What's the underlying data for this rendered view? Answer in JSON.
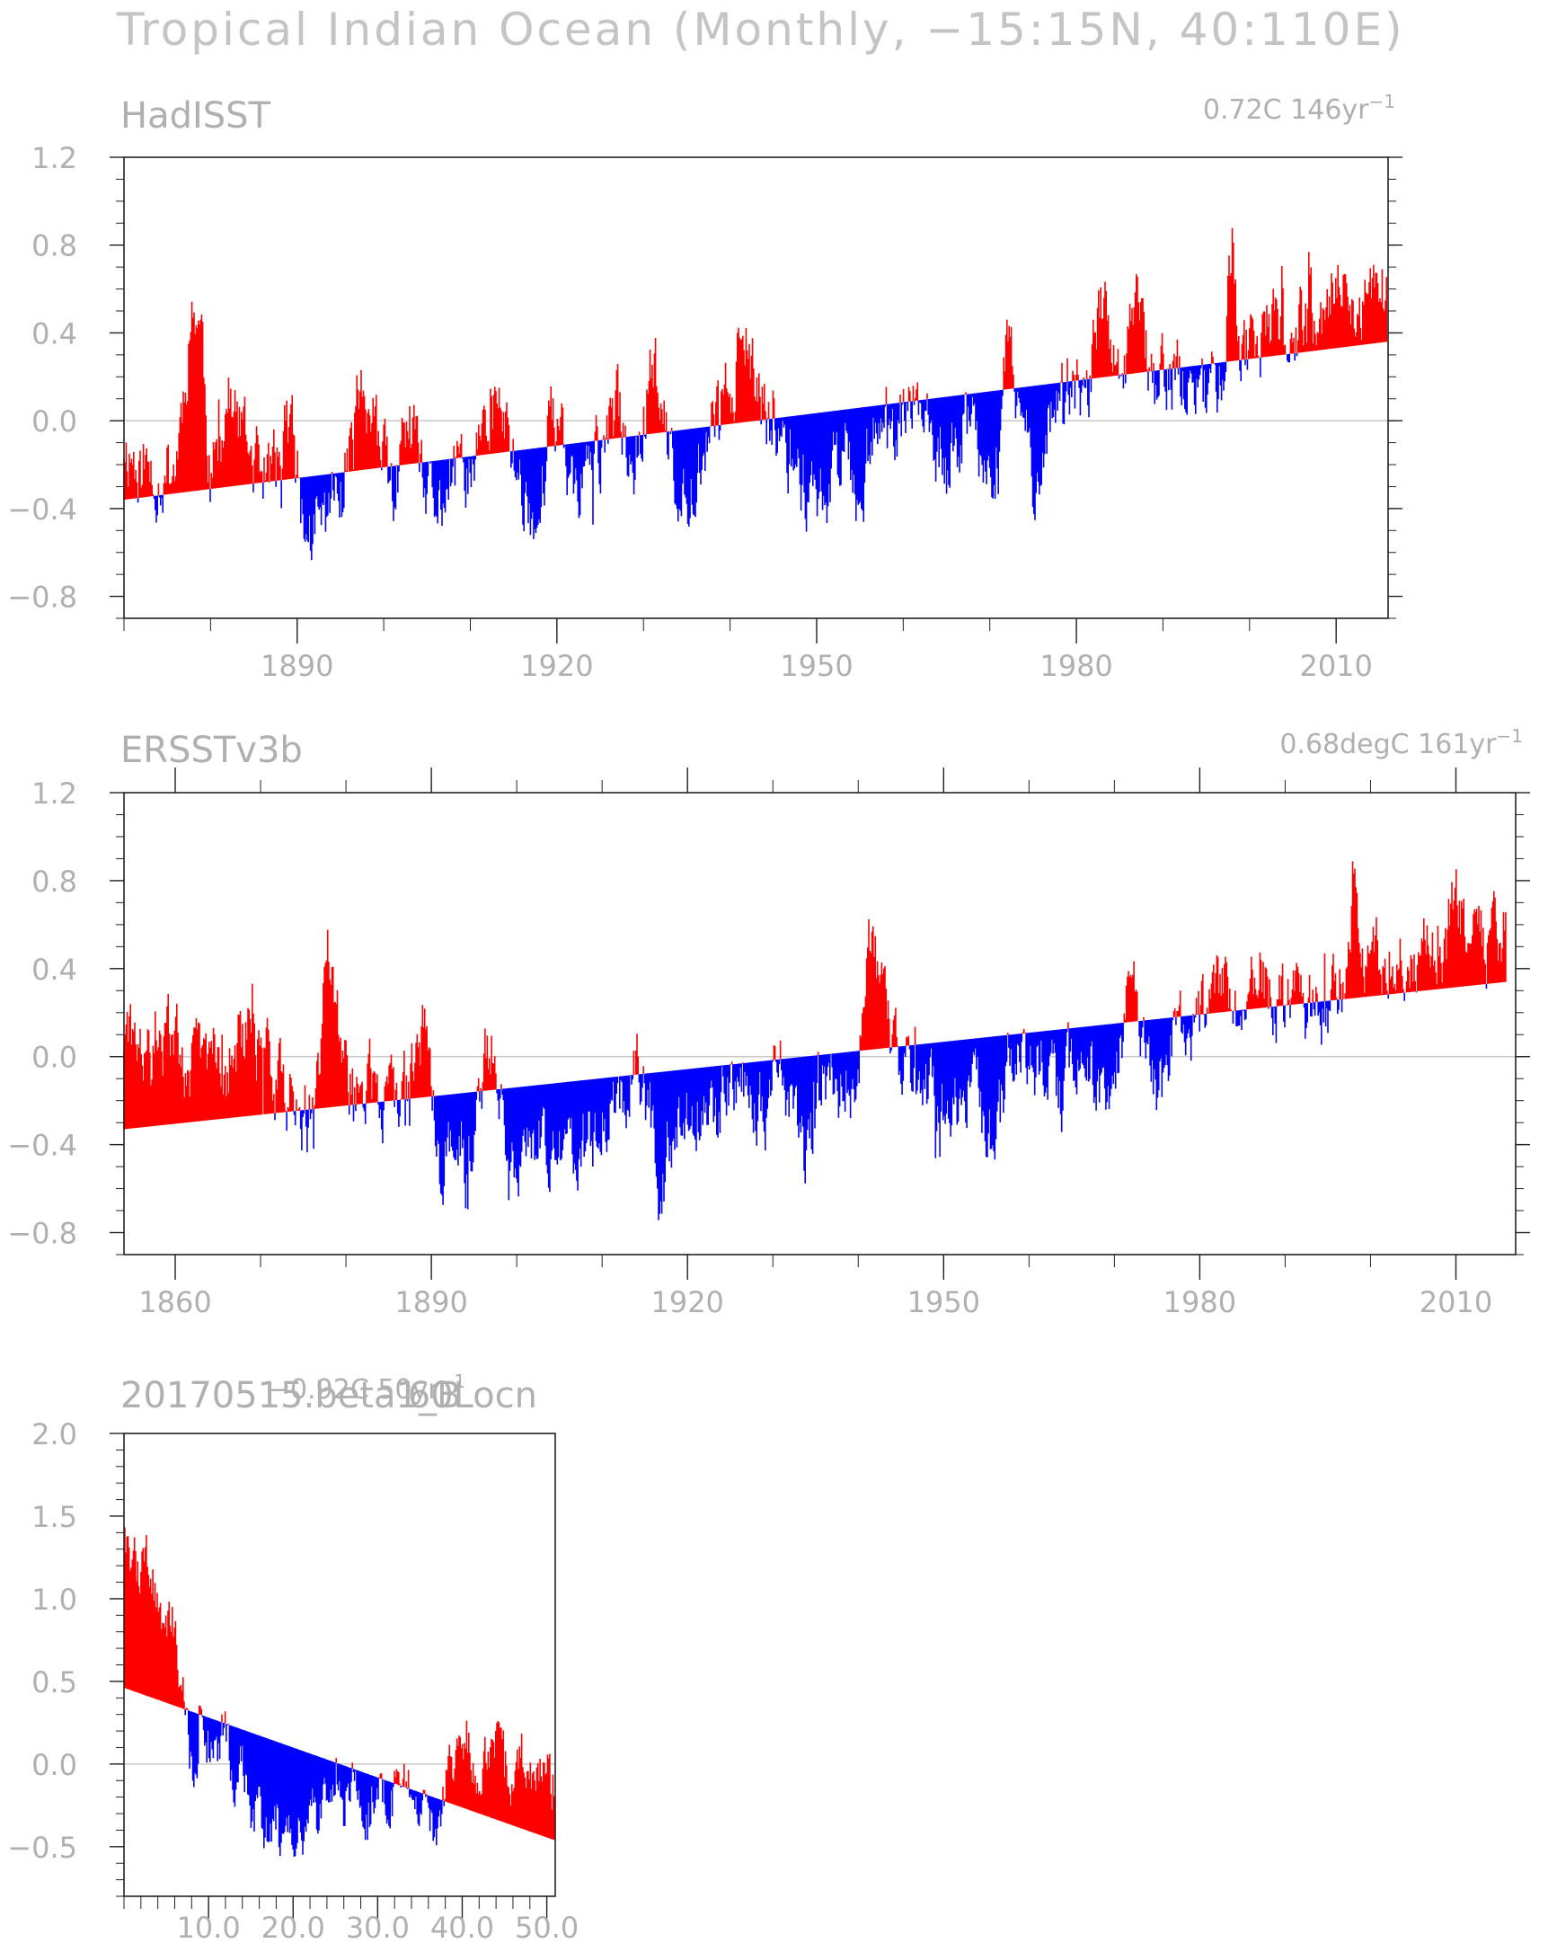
{
  "title": "Tropical Indian Ocean (Monthly, −15:15N, 40:110E)",
  "colors": {
    "positive": "#ff0000",
    "negative": "#0000ff",
    "axis": "#222222",
    "text": "#b0b0b0",
    "zero_line": "#c8c8c8"
  },
  "chart_data": [
    {
      "type": "area",
      "title": "HadISST",
      "trend_label": "0.72C 146yr",
      "trend_label_sup": "−1",
      "x_start": 1870,
      "x_end": 2015.9,
      "xlim": [
        1870,
        2016
      ],
      "ylim": [
        -0.9,
        1.2
      ],
      "xticks": [
        1890,
        1920,
        1950,
        1980,
        2010
      ],
      "yticks": [
        -0.8,
        -0.4,
        0.0,
        0.4,
        0.8,
        1.2
      ],
      "ytick_labels": [
        "−0.8",
        "−0.4",
        "0.0",
        "0.4",
        "0.8",
        "1.2"
      ],
      "xminor_step": 10,
      "yminor_step": 0.1,
      "trend_line": [
        [
          1870,
          -0.36
        ],
        [
          2015.9,
          0.36
        ]
      ],
      "anomaly_profile": [
        [
          1870,
          -0.1
        ],
        [
          1872,
          -0.22
        ],
        [
          1874,
          -0.25
        ],
        [
          1876,
          -0.2
        ],
        [
          1878,
          0.55
        ],
        [
          1879,
          0.4
        ],
        [
          1880,
          -0.3
        ],
        [
          1882,
          0.1
        ],
        [
          1884,
          -0.1
        ],
        [
          1886,
          -0.25
        ],
        [
          1888,
          -0.2
        ],
        [
          1889,
          0.05
        ],
        [
          1891,
          -0.55
        ],
        [
          1893,
          -0.45
        ],
        [
          1895,
          -0.3
        ],
        [
          1897,
          0.15
        ],
        [
          1899,
          -0.05
        ],
        [
          1901,
          -0.35
        ],
        [
          1903,
          -0.05
        ],
        [
          1905,
          -0.4
        ],
        [
          1908,
          -0.3
        ],
        [
          1911,
          -0.15
        ],
        [
          1913,
          0.1
        ],
        [
          1916,
          -0.3
        ],
        [
          1918,
          -0.5
        ],
        [
          1919,
          0.05
        ],
        [
          1922,
          -0.3
        ],
        [
          1925,
          -0.15
        ],
        [
          1927,
          0.05
        ],
        [
          1929,
          -0.2
        ],
        [
          1931,
          0.3
        ],
        [
          1933,
          -0.15
        ],
        [
          1934,
          -0.45
        ],
        [
          1937,
          -0.1
        ],
        [
          1939,
          0.05
        ],
        [
          1941,
          0.3
        ],
        [
          1943,
          0.15
        ],
        [
          1945,
          -0.05
        ],
        [
          1947,
          -0.15
        ],
        [
          1949,
          -0.3
        ],
        [
          1951,
          -0.35
        ],
        [
          1953,
          -0.05
        ],
        [
          1955,
          -0.35
        ],
        [
          1957,
          0.1
        ],
        [
          1959,
          -0.15
        ],
        [
          1961,
          0.15
        ],
        [
          1963,
          -0.1
        ],
        [
          1965,
          -0.3
        ],
        [
          1967,
          0.0
        ],
        [
          1969,
          -0.1
        ],
        [
          1971,
          -0.3
        ],
        [
          1972,
          0.35
        ],
        [
          1973,
          0.15
        ],
        [
          1975,
          -0.25
        ],
        [
          1977,
          0.05
        ],
        [
          1979,
          0.1
        ],
        [
          1981,
          0.1
        ],
        [
          1983,
          0.55
        ],
        [
          1985,
          0.1
        ],
        [
          1987,
          0.5
        ],
        [
          1989,
          0.15
        ],
        [
          1991,
          0.25
        ],
        [
          1993,
          0.1
        ],
        [
          1995,
          0.15
        ],
        [
          1997,
          0.25
        ],
        [
          1998,
          0.85
        ],
        [
          1999,
          0.3
        ],
        [
          2001,
          0.3
        ],
        [
          2003,
          0.45
        ],
        [
          2005,
          0.4
        ],
        [
          2007,
          0.45
        ],
        [
          2009,
          0.5
        ],
        [
          2010,
          0.7
        ],
        [
          2012,
          0.4
        ],
        [
          2014,
          0.55
        ],
        [
          2015.9,
          0.65
        ]
      ]
    },
    {
      "type": "area",
      "title": "ERSSTv3b",
      "trend_label": "0.68degC 161yr",
      "trend_label_sup": "−1",
      "x_start": 1854,
      "x_end": 2015.9,
      "xlim": [
        1854,
        2017
      ],
      "ylim": [
        -0.9,
        1.2
      ],
      "xticks": [
        1860,
        1890,
        1920,
        1950,
        1980,
        2010
      ],
      "yticks": [
        -0.8,
        -0.4,
        0.0,
        0.4,
        0.8,
        1.2
      ],
      "ytick_labels": [
        "−0.8",
        "−0.4",
        "0.0",
        "0.4",
        "0.8",
        "1.2"
      ],
      "xminor_step": 10,
      "yminor_step": 0.1,
      "trend_line": [
        [
          1854,
          -0.33
        ],
        [
          2015.9,
          0.34
        ]
      ],
      "anomaly_profile": [
        [
          1854,
          0.1
        ],
        [
          1856,
          -0.05
        ],
        [
          1858,
          0.0
        ],
        [
          1860,
          0.1
        ],
        [
          1862,
          -0.05
        ],
        [
          1864,
          0.05
        ],
        [
          1866,
          -0.05
        ],
        [
          1868,
          0.1
        ],
        [
          1870,
          0.0
        ],
        [
          1872,
          -0.05
        ],
        [
          1874,
          -0.2
        ],
        [
          1876,
          -0.3
        ],
        [
          1878,
          0.45
        ],
        [
          1879,
          0.2
        ],
        [
          1881,
          -0.2
        ],
        [
          1883,
          -0.1
        ],
        [
          1885,
          -0.25
        ],
        [
          1887,
          -0.1
        ],
        [
          1889,
          0.15
        ],
        [
          1891,
          -0.45
        ],
        [
          1893,
          -0.35
        ],
        [
          1895,
          -0.4
        ],
        [
          1897,
          0.1
        ],
        [
          1899,
          -0.4
        ],
        [
          1901,
          -0.5
        ],
        [
          1903,
          -0.3
        ],
        [
          1904,
          -0.55
        ],
        [
          1906,
          -0.35
        ],
        [
          1908,
          -0.4
        ],
        [
          1910,
          -0.3
        ],
        [
          1912,
          -0.2
        ],
        [
          1914,
          0.0
        ],
        [
          1916,
          -0.25
        ],
        [
          1917,
          -0.6
        ],
        [
          1919,
          -0.3
        ],
        [
          1921,
          -0.2
        ],
        [
          1923,
          -0.3
        ],
        [
          1925,
          -0.15
        ],
        [
          1927,
          -0.1
        ],
        [
          1929,
          -0.25
        ],
        [
          1931,
          -0.1
        ],
        [
          1933,
          -0.3
        ],
        [
          1934,
          -0.5
        ],
        [
          1936,
          -0.1
        ],
        [
          1938,
          -0.2
        ],
        [
          1940,
          -0.05
        ],
        [
          1941,
          0.35
        ],
        [
          1942,
          0.4
        ],
        [
          1943,
          0.2
        ],
        [
          1945,
          -0.1
        ],
        [
          1947,
          -0.05
        ],
        [
          1949,
          -0.25
        ],
        [
          1951,
          -0.3
        ],
        [
          1953,
          -0.1
        ],
        [
          1955,
          -0.35
        ],
        [
          1956,
          -0.45
        ],
        [
          1958,
          0.05
        ],
        [
          1960,
          0.0
        ],
        [
          1962,
          -0.05
        ],
        [
          1964,
          -0.15
        ],
        [
          1966,
          0.05
        ],
        [
          1968,
          -0.1
        ],
        [
          1970,
          -0.1
        ],
        [
          1972,
          0.3
        ],
        [
          1973,
          0.1
        ],
        [
          1975,
          -0.2
        ],
        [
          1977,
          0.1
        ],
        [
          1979,
          0.15
        ],
        [
          1981,
          0.2
        ],
        [
          1983,
          0.4
        ],
        [
          1985,
          0.1
        ],
        [
          1987,
          0.4
        ],
        [
          1989,
          0.2
        ],
        [
          1991,
          0.35
        ],
        [
          1993,
          0.2
        ],
        [
          1995,
          0.2
        ],
        [
          1997,
          0.35
        ],
        [
          1998,
          0.85
        ],
        [
          1999,
          0.4
        ],
        [
          2001,
          0.4
        ],
        [
          2003,
          0.45
        ],
        [
          2005,
          0.5
        ],
        [
          2007,
          0.5
        ],
        [
          2009,
          0.55
        ],
        [
          2010,
          0.75
        ],
        [
          2012,
          0.5
        ],
        [
          2014,
          0.55
        ],
        [
          2015.9,
          0.65
        ]
      ]
    },
    {
      "type": "area",
      "title": "20170515.beta1_B",
      "overlay_text": "60Locn",
      "trend_label": "−0.92C 50yr",
      "trend_label_sup": "−1",
      "x_start": 0.1,
      "x_end": 50.9,
      "xlim": [
        0,
        51
      ],
      "ylim": [
        -0.8,
        2.0
      ],
      "xticks": [
        10,
        20,
        30,
        40,
        50
      ],
      "xtick_labels": [
        "10.0",
        "20.0",
        "30.0",
        "40.0",
        "50.0"
      ],
      "yticks": [
        -0.5,
        0.0,
        0.5,
        1.0,
        1.5,
        2.0
      ],
      "ytick_labels": [
        "−0.5",
        "0.0",
        "0.5",
        "1.0",
        "1.5",
        "2.0"
      ],
      "xminor_step": 2,
      "yminor_step": 0.1,
      "trend_line": [
        [
          0.1,
          0.46
        ],
        [
          50.9,
          -0.46
        ]
      ],
      "anomaly_profile": [
        [
          0.1,
          1.5
        ],
        [
          1,
          1.2
        ],
        [
          2,
          1.1
        ],
        [
          3,
          1.2
        ],
        [
          4,
          1.0
        ],
        [
          5,
          0.8
        ],
        [
          6,
          0.85
        ],
        [
          7,
          0.45
        ],
        [
          8,
          -0.05
        ],
        [
          9,
          0.2
        ],
        [
          10,
          0.15
        ],
        [
          11,
          0.05
        ],
        [
          12,
          0.2
        ],
        [
          13,
          -0.05
        ],
        [
          14,
          0.1
        ],
        [
          15,
          -0.25
        ],
        [
          16,
          -0.35
        ],
        [
          17,
          -0.45
        ],
        [
          18,
          -0.3
        ],
        [
          19,
          -0.35
        ],
        [
          20,
          -0.3
        ],
        [
          21,
          -0.4
        ],
        [
          22,
          -0.25
        ],
        [
          23,
          -0.3
        ],
        [
          24,
          -0.2
        ],
        [
          25,
          -0.15
        ],
        [
          26,
          -0.25
        ],
        [
          27,
          -0.1
        ],
        [
          28,
          -0.2
        ],
        [
          29,
          -0.3
        ],
        [
          30,
          -0.25
        ],
        [
          31,
          -0.15
        ],
        [
          32,
          -0.2
        ],
        [
          33,
          0.1
        ],
        [
          34,
          -0.25
        ],
        [
          35,
          -0.3
        ],
        [
          36,
          -0.2
        ],
        [
          37,
          -0.5
        ],
        [
          38,
          -0.15
        ],
        [
          39,
          0.0
        ],
        [
          40,
          0.1
        ],
        [
          41,
          0.05
        ],
        [
          42,
          -0.05
        ],
        [
          43,
          0.05
        ],
        [
          44,
          0.1
        ],
        [
          45,
          0.0
        ],
        [
          46,
          -0.05
        ],
        [
          47,
          0.05
        ],
        [
          48,
          0.0
        ],
        [
          49,
          -0.1
        ],
        [
          50,
          -0.05
        ],
        [
          50.9,
          -0.2
        ]
      ]
    }
  ]
}
